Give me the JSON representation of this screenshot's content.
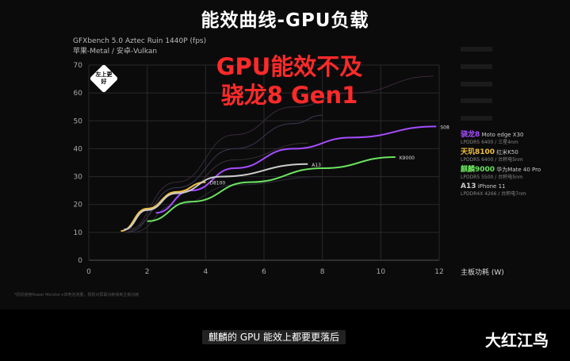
{
  "page": {
    "title": "能效曲线-GPU负载",
    "subtitle_line1": "GFXbench 5.0 Aztec Ruin 1440P (fps)",
    "subtitle_line2": "苹果-Metal / 安卓-Vulkan",
    "overlay_line1": "GPU能效不及",
    "overlay_line2": "骁龙8 Gen1",
    "badge": "左上更好",
    "footnote": "*机机使用Power Monitor+四电池测量，规则对屏幕功耗得到主板功耗",
    "caption": "麒麟的 GPU 能效上都要更落后",
    "brand": "大红江鸟",
    "colors": {
      "purple": "#a64dff",
      "green": "#6be35f",
      "yellow": "#f0c040",
      "white": "#dddddd"
    }
  },
  "chart_data": {
    "type": "line",
    "xlabel": "主板功耗 (W)",
    "ylabel": "",
    "xlim": [
      0,
      12
    ],
    "ylim": [
      0,
      70
    ],
    "xticks": [
      "0",
      "2",
      "4",
      "6",
      "8",
      "10",
      "12"
    ],
    "yticks": [
      "0",
      "10",
      "20",
      "30",
      "40",
      "50",
      "60",
      "70"
    ],
    "grid": true,
    "legend_position": "right",
    "series": [
      {
        "name": "骁龙8",
        "end_label": "S08",
        "color": "#a64dff",
        "x": [
          2.3,
          3.5,
          5,
          7,
          9,
          11.9
        ],
        "y": [
          17,
          25,
          33,
          40,
          44,
          48
        ]
      },
      {
        "name": "天玑8100",
        "end_label": "D8100",
        "color": "#f0c040",
        "x": [
          1.1,
          2,
          3,
          4
        ],
        "y": [
          10.5,
          18.5,
          24.5,
          28
        ]
      },
      {
        "name": "麒麟9000",
        "end_label": "K9000",
        "color": "#6be35f",
        "x": [
          2,
          3.5,
          5.5,
          8,
          10.5
        ],
        "y": [
          14,
          21,
          28,
          33,
          37
        ]
      },
      {
        "name": "A13",
        "end_label": "A13",
        "color": "#cccccc",
        "x": [
          1.2,
          2,
          3,
          4.5,
          7.5
        ],
        "y": [
          11,
          18,
          24,
          30,
          34.5
        ]
      }
    ],
    "legend": [
      {
        "name": "骁龙8",
        "device": "Moto edge X30",
        "spec": "LPDDR5 6400 / 三星4nm",
        "color": "#a64dff",
        "dim": false
      },
      {
        "name": "天玑8100",
        "device": "红米K50",
        "spec": "LPDDR5 6400 / 台积电5nm",
        "color": "#f0c040",
        "dim": false
      },
      {
        "name": "麒麟9000",
        "device": "华为Mate 40 Pro",
        "spec": "LPDDR5 5500 / 台积电5nm",
        "color": "#6be35f",
        "dim": false
      },
      {
        "name": "A13",
        "device": "iPhone 11",
        "spec": "LPDDR4X 4266 / 台积电7nm",
        "color": "#cccccc",
        "dim": false
      }
    ]
  }
}
